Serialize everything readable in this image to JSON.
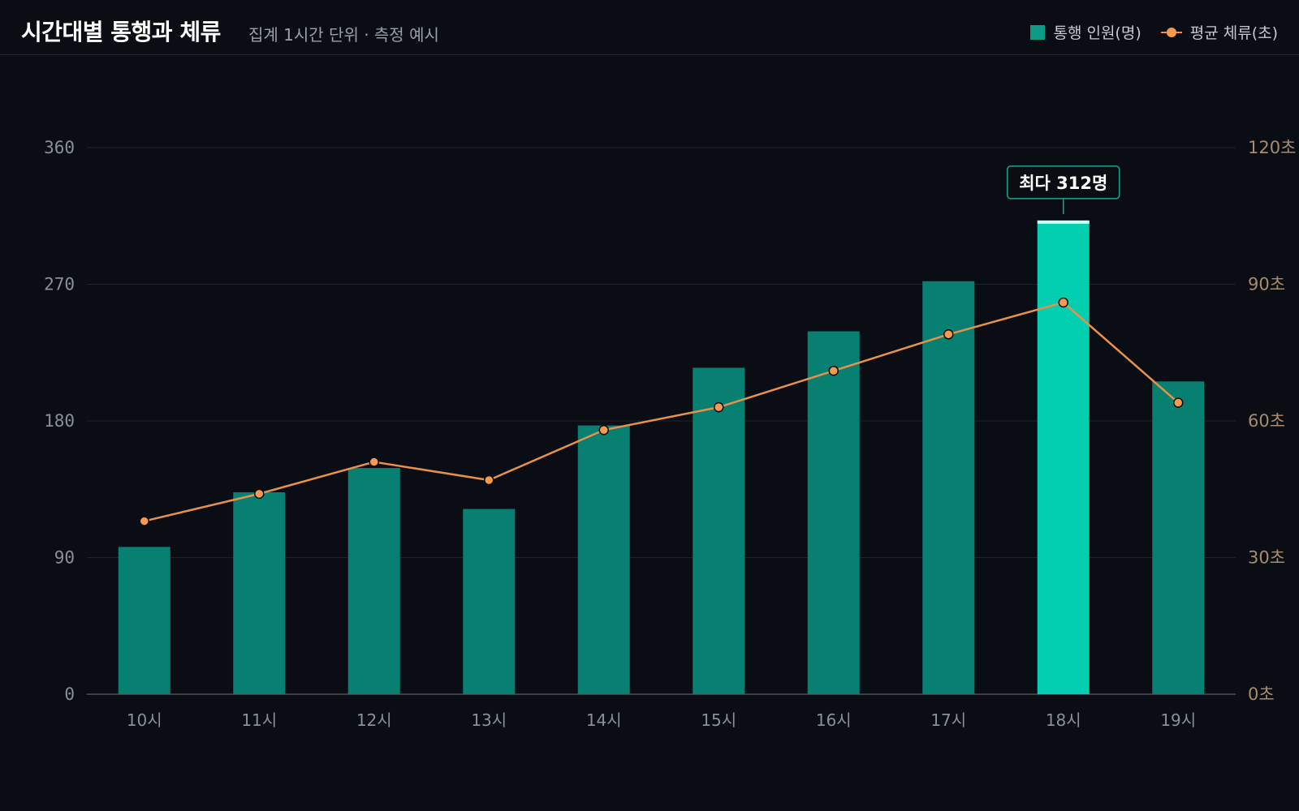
{
  "header": {
    "title": "시간대별 통행과 체류",
    "subtitle": "집계 1시간 단위 · 측정 예시"
  },
  "legend": {
    "bar_label": "통행 인원(명)",
    "line_label": "평균 체류(초)"
  },
  "colors": {
    "bar": "#077f71",
    "bar_highlight": "#02cfb0",
    "bar_highlight_cap": "#c9fff2",
    "line": "#e8914a",
    "point": "#f59a4e",
    "grid": "#1e232a",
    "axis": "#4a5058",
    "callout_border": "#18a58d"
  },
  "chart_data": {
    "type": "bar",
    "categories": [
      "10시",
      "11시",
      "12시",
      "13시",
      "14시",
      "15시",
      "16시",
      "17시",
      "18시",
      "19시"
    ],
    "series": [
      {
        "name": "통행 인원(명)",
        "type": "bar",
        "axis": "left",
        "values": [
          97,
          133,
          149,
          122,
          177,
          215,
          239,
          272,
          312,
          206
        ]
      },
      {
        "name": "평균 체류(초)",
        "type": "line",
        "axis": "right",
        "values": [
          38,
          44,
          51,
          47,
          58,
          63,
          71,
          79,
          86,
          64
        ]
      }
    ],
    "y_left": {
      "min": 0,
      "max": 360,
      "ticks": [
        0,
        90,
        180,
        270,
        360
      ]
    },
    "y_right": {
      "min": 0,
      "max": 120,
      "ticks": [
        "0초",
        "30초",
        "60초",
        "90초",
        "120초"
      ]
    },
    "grid": true,
    "legend_position": "top-right",
    "annotation": {
      "category": "18시",
      "text": "최다 312명"
    }
  }
}
